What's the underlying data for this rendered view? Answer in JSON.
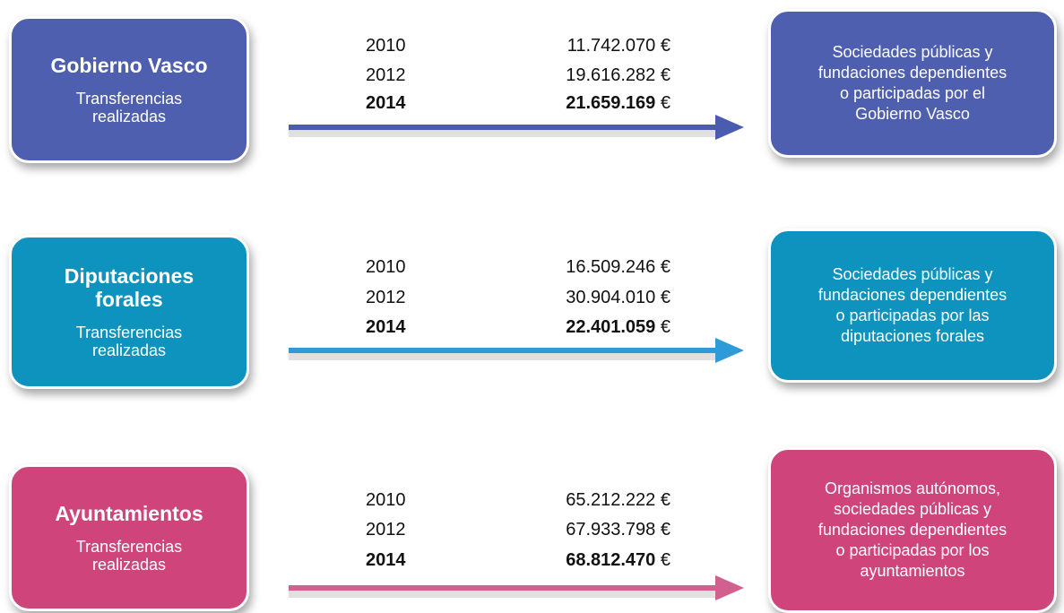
{
  "rows": [
    {
      "source": {
        "title": [
          "Gobierno Vasco"
        ],
        "subtitle": [
          "Transferencias",
          "realizadas"
        ]
      },
      "entries": [
        {
          "year": "2010",
          "amount": "11.742.070",
          "currency": "€"
        },
        {
          "year": "2012",
          "amount": "19.616.282",
          "currency": "€"
        },
        {
          "year": "2014",
          "amount": "21.659.169",
          "currency": "€"
        }
      ],
      "target": [
        "Sociedades públicas y",
        "fundaciones dependientes",
        "o participadas por el",
        "Gobierno Vasco"
      ]
    },
    {
      "source": {
        "title": [
          "Diputaciones",
          "forales"
        ],
        "subtitle": [
          "Transferencias",
          "realizadas"
        ]
      },
      "entries": [
        {
          "year": "2010",
          "amount": "16.509.246",
          "currency": "€"
        },
        {
          "year": "2012",
          "amount": "30.904.010",
          "currency": "€"
        },
        {
          "year": "2014",
          "amount": "22.401.059",
          "currency": "€"
        }
      ],
      "target": [
        "Sociedades públicas y",
        "fundaciones dependientes",
        "o participadas por las",
        "diputaciones forales"
      ]
    },
    {
      "source": {
        "title": [
          "Ayuntamientos"
        ],
        "subtitle": [
          "Transferencias",
          "realizadas"
        ]
      },
      "entries": [
        {
          "year": "2010",
          "amount": "65.212.222",
          "currency": "€"
        },
        {
          "year": "2012",
          "amount": "67.933.798",
          "currency": "€"
        },
        {
          "year": "2014",
          "amount": "68.812.470",
          "currency": "€"
        }
      ],
      "target": [
        "Organismos autónomos,",
        "sociedades públicas y",
        "fundaciones dependientes",
        "o participadas por los",
        "ayuntamientos"
      ]
    }
  ]
}
